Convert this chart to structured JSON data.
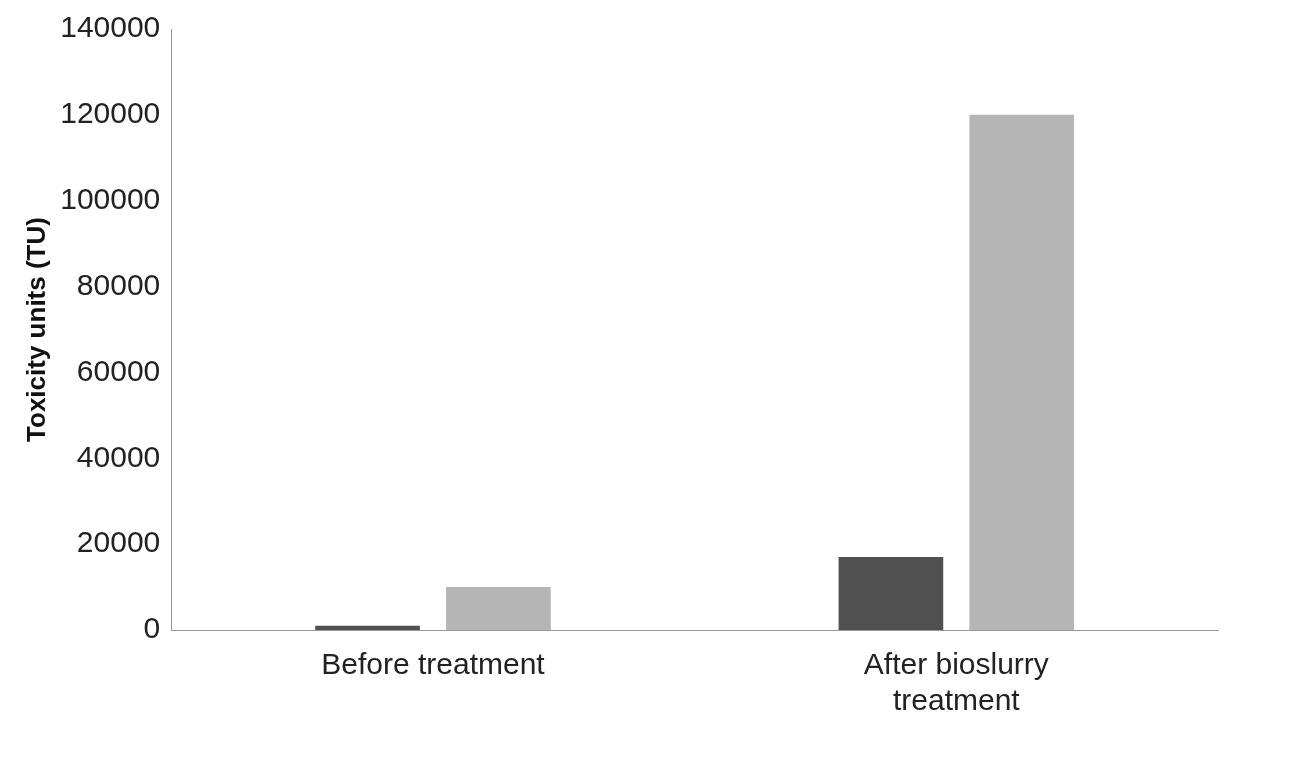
{
  "chart_data": {
    "type": "bar",
    "ylabel": "Toxicity units (TU)",
    "categories": [
      "Before treatment",
      "After bioslurry treatment"
    ],
    "series": [
      {
        "color": "#505050",
        "values": [
          1000,
          17000
        ]
      },
      {
        "color": "#b5b5b5",
        "values": [
          10000,
          120000
        ]
      }
    ],
    "ylim": [
      0,
      140000
    ],
    "yticks": [
      0,
      20000,
      40000,
      60000,
      80000,
      100000,
      120000,
      140000
    ],
    "grid": false,
    "legend": false
  }
}
